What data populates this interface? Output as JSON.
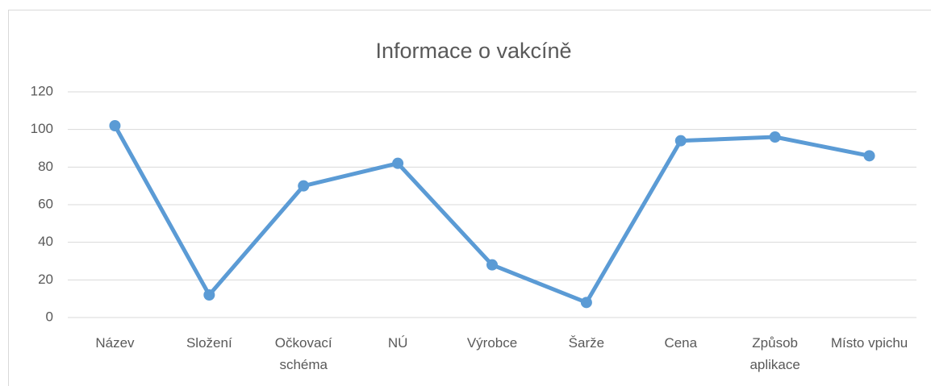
{
  "chart_data": {
    "type": "line",
    "title": "Informace o vakcíně",
    "categories": [
      "Název",
      "Složení",
      "Očkovací schéma",
      "NÚ",
      "Výrobce",
      "Šarže",
      "Cena",
      "Způsob aplikace",
      "Místo vpichu"
    ],
    "values": [
      102,
      12,
      70,
      82,
      28,
      8,
      94,
      96,
      86
    ],
    "color": "#5b9bd5",
    "ylim": [
      0,
      120
    ],
    "yticks": [
      0,
      20,
      40,
      60,
      80,
      100,
      120
    ],
    "grid": true
  }
}
